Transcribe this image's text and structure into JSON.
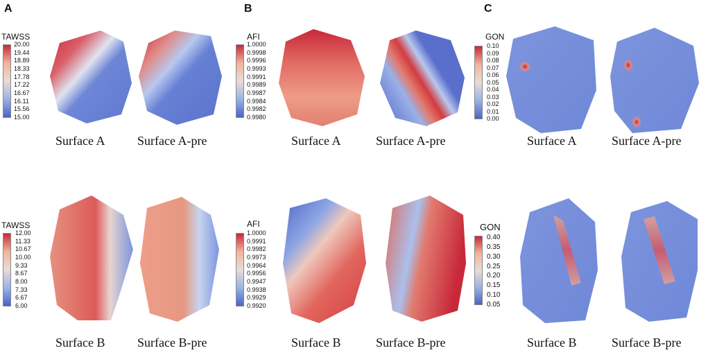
{
  "panels": [
    {
      "letter": "A"
    },
    {
      "letter": "B"
    },
    {
      "letter": "C"
    }
  ],
  "colorbars": [
    {
      "title": "TAWSS",
      "ticks": [
        "20.00",
        "19.44",
        "18.89",
        "18.33",
        "17.78",
        "17.22",
        "16.67",
        "16.11",
        "15.56",
        "15.00"
      ]
    },
    {
      "title": "AFI",
      "ticks": [
        "1.0000",
        "0.9998",
        "0.9996",
        "0.9993",
        "0.9991",
        "0.9989",
        "0.9987",
        "0.9984",
        "0.9982",
        "0.9980"
      ]
    },
    {
      "title": "GON",
      "ticks": [
        "0.10",
        "0.09",
        "0.08",
        "0.07",
        "0.06",
        "0.05",
        "0.04",
        "0.03",
        "0.02",
        "0.01",
        "0.00"
      ]
    },
    {
      "title": "TAWSS",
      "ticks": [
        "12.00",
        "11.33",
        "10.67",
        "10.00",
        "9.33",
        "8.67",
        "8.00",
        "7.33",
        "6.67",
        "6.00"
      ]
    },
    {
      "title": "AFI",
      "ticks": [
        "1.0000",
        "0.9991",
        "0.9982",
        "0.9973",
        "0.9964",
        "0.9956",
        "0.9947",
        "0.9938",
        "0.9929",
        "0.9920"
      ]
    },
    {
      "title": "GON",
      "ticks": [
        "0.40",
        "0.35",
        "0.30",
        "0.25",
        "0.20",
        "0.15",
        "0.10",
        "0.05"
      ]
    }
  ],
  "captions": [
    "Surface A",
    "Surface A-pre",
    "Surface A",
    "Surface A-pre",
    "Surface A",
    "Surface A-pre",
    "Surface B",
    "Surface B-pre",
    "Surface B",
    "Surface B-pre",
    "Surface B",
    "Surface B-pre"
  ],
  "colors": {
    "high": "#c8283a",
    "mid": "#e9dcd6",
    "low": "#4a64c8"
  }
}
